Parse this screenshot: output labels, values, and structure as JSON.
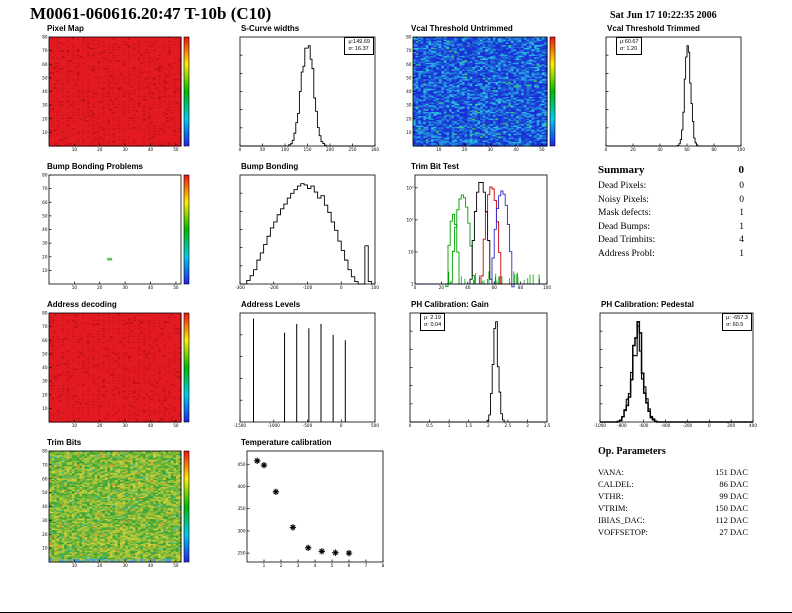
{
  "page": {
    "title": "M0061-060616.20:47 T-10b (C10)",
    "date": "Sat Jun 17 10:22:35 2006"
  },
  "summary": {
    "title": "Summary",
    "total": "0",
    "rows": [
      {
        "label": "Dead Pixels:",
        "value": "0"
      },
      {
        "label": "Noisy Pixels:",
        "value": "0"
      },
      {
        "label": "Mask defects:",
        "value": "1"
      },
      {
        "label": "Dead Bumps:",
        "value": "1"
      },
      {
        "label": "Dead Trimbits:",
        "value": "4"
      },
      {
        "label": "Address Probl:",
        "value": "1"
      }
    ]
  },
  "op_parameters": {
    "title": "Op. Parameters",
    "rows": [
      {
        "label": "VANA:",
        "value": "151 DAC"
      },
      {
        "label": "CALDEL:",
        "value": "86 DAC"
      },
      {
        "label": "VTHR:",
        "value": "99 DAC"
      },
      {
        "label": "VTRIM:",
        "value": "150 DAC"
      },
      {
        "label": "IBIAS_DAC:",
        "value": "112 DAC"
      },
      {
        "label": "VOFFSETOP:",
        "value": "27 DAC"
      }
    ]
  },
  "chart_data": {
    "pixel_map": {
      "type": "heatmap",
      "title": "Pixel Map",
      "style": "uniform-red",
      "nx": 52,
      "ny": 80,
      "xlim": [
        0,
        52
      ],
      "ylim": [
        0,
        80
      ],
      "x_ticks": [
        10,
        20,
        30,
        40,
        50
      ],
      "y_ticks": [
        10,
        20,
        30,
        40,
        50,
        60,
        70,
        80
      ],
      "colorbar": true,
      "description": "all 4160 pixels uniform high value (pass)"
    },
    "scurve_widths": {
      "type": "hist",
      "title": "S-Curve widths",
      "xlim": [
        0,
        300
      ],
      "x_ticks": [
        0,
        50,
        100,
        150,
        200,
        250,
        300
      ],
      "gauss": {
        "mean": 149.69,
        "sigma": 13,
        "nbins": 75
      },
      "stats": {
        "mu_text": "μ:149.69",
        "sigma_text": "σ: 16.37",
        "mean": 149.69,
        "sigma": 16.37
      }
    },
    "vcal_untrimmed": {
      "type": "heatmap",
      "title": "Vcal Threshold Untrimmed",
      "style": "noisy-blue",
      "nx": 52,
      "ny": 80,
      "xlim": [
        0,
        52
      ],
      "ylim": [
        0,
        80
      ],
      "x_ticks": [
        10,
        20,
        30,
        40,
        50
      ],
      "y_ticks": [
        10,
        20,
        30,
        40,
        50,
        60,
        70,
        80
      ],
      "colorbar": true,
      "description": "low threshold values, blue/cyan noise map"
    },
    "vcal_trimmed": {
      "type": "hist",
      "title": "Vcal Threshold Trimmed",
      "xlim": [
        0,
        100
      ],
      "x_ticks": [
        0,
        20,
        40,
        60,
        80,
        100
      ],
      "gauss": {
        "mean": 60.67,
        "sigma": 2.2,
        "nbins": 100
      },
      "stats": {
        "mu_text": "μ:60.67",
        "sigma_text": "σ: 1.20",
        "mean": 60.67,
        "sigma": 1.2
      }
    },
    "bump_problems": {
      "type": "heatmap",
      "title": "Bump Bonding Problems",
      "style": "white",
      "nx": 52,
      "ny": 80,
      "xlim": [
        0,
        52
      ],
      "ylim": [
        0,
        80
      ],
      "x_ticks": [
        10,
        20,
        30,
        40,
        50
      ],
      "y_ticks": [
        10,
        20,
        30,
        40,
        50,
        60,
        70,
        80
      ],
      "colorbar": true,
      "dot": [
        0.44,
        0.76
      ],
      "description": "empty map, single defective bump"
    },
    "bump_bonding": {
      "type": "hist",
      "title": "Bump Bonding",
      "xlim": [
        -300,
        100
      ],
      "x_ticks": [
        -300,
        -200,
        -100,
        0,
        100
      ],
      "bins": [
        0,
        0,
        0.03,
        0.07,
        0.12,
        0.2,
        0.26,
        0.33,
        0.4,
        0.47,
        0.52,
        0.58,
        0.63,
        0.67,
        0.72,
        0.76,
        0.79,
        0.82,
        0.84,
        0.83,
        0.8,
        0.82,
        0.77,
        0.72,
        0.74,
        0.66,
        0.6,
        0.52,
        0.45,
        0.36,
        0.28,
        0.2,
        0.12,
        0.06,
        0.02,
        0,
        0,
        0.32,
        0.02,
        0
      ]
    },
    "trimbit_test": {
      "type": "multi_hist",
      "title": "Trim Bit Test",
      "logy": true,
      "xlim": [
        0,
        100
      ],
      "x_ticks": [
        0,
        20,
        40,
        60,
        80,
        100
      ],
      "y_tick_labels": [
        "1",
        "10",
        "10²",
        "10³"
      ],
      "series": [
        {
          "color": "#00a000",
          "mean": 29,
          "sigma": 1.5,
          "peak": 150
        },
        {
          "color": "#00a000",
          "mean": 36,
          "sigma": 2.4,
          "peak": 600
        },
        {
          "color": "#000000",
          "mean": 50,
          "sigma": 2.0,
          "peak": 1600
        },
        {
          "color": "#cc0000",
          "mean": 58,
          "sigma": 2.0,
          "peak": 1100
        },
        {
          "color": "#2828c8",
          "mean": 66,
          "sigma": 2.2,
          "peak": 800
        }
      ]
    },
    "addr_decoding": {
      "type": "heatmap",
      "title": "Address decoding",
      "style": "uniform-red",
      "nx": 52,
      "ny": 80,
      "xlim": [
        0,
        52
      ],
      "ylim": [
        0,
        80
      ],
      "x_ticks": [
        10,
        20,
        30,
        40,
        50
      ],
      "y_ticks": [
        10,
        20,
        30,
        40,
        50,
        60,
        70,
        80
      ],
      "colorbar": true,
      "description": "all pixels decode correctly (uniform)"
    },
    "addr_levels": {
      "type": "spikes",
      "title": "Address Levels",
      "xlim": [
        -1500,
        500
      ],
      "x_ticks": [
        -1500,
        -1000,
        -500,
        0,
        500
      ],
      "spikes": [
        {
          "x": -1300,
          "h": 0.95
        },
        {
          "x": -840,
          "h": 0.82
        },
        {
          "x": -660,
          "h": 0.9
        },
        {
          "x": -480,
          "h": 0.86
        },
        {
          "x": -300,
          "h": 0.9
        },
        {
          "x": -120,
          "h": 0.8
        },
        {
          "x": 60,
          "h": 0.75
        }
      ]
    },
    "ph_gain": {
      "type": "hist",
      "title": "PH Calibration: Gain",
      "xlim": [
        0,
        3.5
      ],
      "x_ticks": [
        0,
        0.5,
        1,
        1.5,
        2,
        2.5,
        3,
        3.5
      ],
      "gauss": {
        "mean": 2.19,
        "sigma": 0.07,
        "nbins": 80
      },
      "stats": {
        "mu_text": "μ: 2.19",
        "sigma_text": "σ: 0.04",
        "mean": 2.19,
        "sigma": 0.04
      }
    },
    "ph_pedestal": {
      "type": "hist",
      "title": "PH Calibration: Pedestal",
      "thick": true,
      "jitter": 0.55,
      "xlim": [
        -1000,
        400
      ],
      "x_ticks": [
        -1000,
        -800,
        -600,
        -400,
        -200,
        0,
        200,
        400
      ],
      "gauss": {
        "mean": -657.3,
        "sigma": 55,
        "nbins": 70
      },
      "stats": {
        "mu_text": "μ: -657.3",
        "sigma_text": "σ: 60.5",
        "mean": -657.3,
        "sigma": 60.5
      }
    },
    "trim_bits": {
      "type": "heatmap",
      "title": "Trim Bits",
      "style": "noisy-green",
      "nx": 52,
      "ny": 80,
      "xlim": [
        0,
        52
      ],
      "ylim": [
        0,
        80
      ],
      "x_ticks": [
        10,
        20,
        30,
        40,
        50
      ],
      "y_ticks": [
        10,
        20,
        30,
        40,
        50,
        60,
        70,
        80
      ],
      "colorbar": true,
      "description": "trim bit values, green/yellow noise map"
    },
    "temp_calib": {
      "type": "scatter",
      "title": "Temperature calibration",
      "marker": "asterisk",
      "xlim": [
        0,
        8
      ],
      "x_ticks": [
        1,
        2,
        3,
        4,
        5,
        6,
        7,
        8
      ],
      "ylim": [
        230,
        480
      ],
      "y_ticks": [
        250,
        300,
        350,
        400,
        450
      ],
      "points": [
        [
          0.6,
          458
        ],
        [
          1.0,
          448
        ],
        [
          1.7,
          388
        ],
        [
          2.7,
          308
        ],
        [
          3.6,
          262
        ],
        [
          4.4,
          254
        ],
        [
          5.2,
          251
        ],
        [
          6.0,
          250
        ]
      ]
    }
  }
}
